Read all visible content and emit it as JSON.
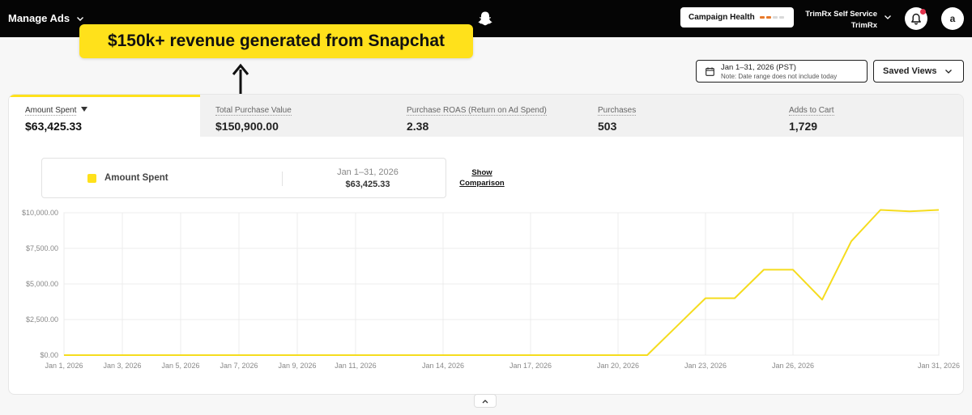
{
  "header": {
    "menu_label": "Manage Ads",
    "campaign_health_label": "Campaign Health",
    "campaign_health_colors": [
      "#e8792a",
      "#e8792a",
      "#d9d9d9",
      "#d9d9d9"
    ],
    "account_name": "TrimRx Self Service",
    "account_org": "TrimRx",
    "avatar_letter": "a"
  },
  "annotation": {
    "text": "$150k+ revenue generated from Snapchat"
  },
  "date_range": {
    "label": "Jan 1–31, 2026 (PST)",
    "note": "Note: Date range does not include today"
  },
  "saved_views_label": "Saved Views",
  "metric_tabs": [
    {
      "label": "Amount Spent",
      "value": "$63,425.33",
      "active": true
    },
    {
      "label": "Total Purchase Value",
      "value": "$150,900.00",
      "active": false
    },
    {
      "label": "Purchase ROAS (Return on Ad Spend)",
      "value": "2.38",
      "active": false
    },
    {
      "label": "Purchases",
      "value": "503",
      "active": false
    },
    {
      "label": "Adds to Cart",
      "value": "1,729",
      "active": false
    }
  ],
  "legend": {
    "series_name": "Amount Spent",
    "range": "Jan 1–31, 2026",
    "total": "$63,425.33",
    "show_comparison": [
      "Show",
      "Comparison"
    ]
  },
  "colors": {
    "accent": "#ffe11b",
    "line": "#f5dc1e",
    "topbar": "#050505"
  },
  "chart_data": {
    "type": "line",
    "title": "",
    "xlabel": "",
    "ylabel": "",
    "ylim": [
      0,
      10000
    ],
    "y_ticks": [
      "$0.00",
      "$2,500.00",
      "$5,000.00",
      "$7,500.00",
      "$10,000.00"
    ],
    "x_tick_labels": [
      "Jan 1, 2026",
      "Jan 3, 2026",
      "Jan 5, 2026",
      "Jan 7, 2026",
      "Jan 9, 2026",
      "Jan 11, 2026",
      "Jan 14, 2026",
      "Jan 17, 2026",
      "Jan 20, 2026",
      "Jan 23, 2026",
      "Jan 26, 2026",
      "Jan 31, 2026"
    ],
    "x_tick_days": [
      1,
      3,
      5,
      7,
      9,
      11,
      14,
      17,
      20,
      23,
      26,
      31
    ],
    "grid": true,
    "legend": "top-left",
    "series": [
      {
        "name": "Amount Spent",
        "x": [
          1,
          2,
          3,
          4,
          5,
          6,
          7,
          8,
          9,
          10,
          11,
          12,
          13,
          14,
          15,
          16,
          17,
          18,
          19,
          20,
          21,
          22,
          23,
          24,
          25,
          26,
          27,
          28,
          29,
          30,
          31
        ],
        "values": [
          0,
          0,
          0,
          0,
          0,
          0,
          0,
          0,
          0,
          0,
          0,
          0,
          0,
          0,
          0,
          0,
          0,
          0,
          0,
          0,
          0,
          2000,
          4000,
          4000,
          6000,
          6000,
          3900,
          8000,
          10200,
          10100,
          10200
        ]
      }
    ]
  }
}
